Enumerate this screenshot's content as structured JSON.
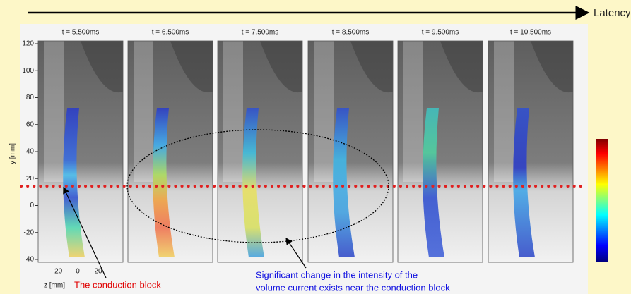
{
  "latency_label": "Latency",
  "panels": [
    {
      "title": "t = 5.500ms"
    },
    {
      "title": "t = 6.500ms"
    },
    {
      "title": "t = 7.500ms"
    },
    {
      "title": "t = 8.500ms"
    },
    {
      "title": "t = 9.500ms"
    },
    {
      "title": "t = 10.500ms"
    }
  ],
  "y_axis": {
    "label": "y [mm]",
    "ticks": [
      "120",
      "100",
      "80",
      "60",
      "40",
      "20",
      "0",
      "-20",
      "-40"
    ]
  },
  "x_axis": {
    "label": "z [mm]",
    "ticks": [
      "-20",
      "0",
      "20"
    ]
  },
  "annotations": {
    "conduction_block": "The conduction block",
    "significant_change_line1": "Significant change in the intensity of the",
    "significant_change_line2": "volume current exists near the conduction block"
  }
}
